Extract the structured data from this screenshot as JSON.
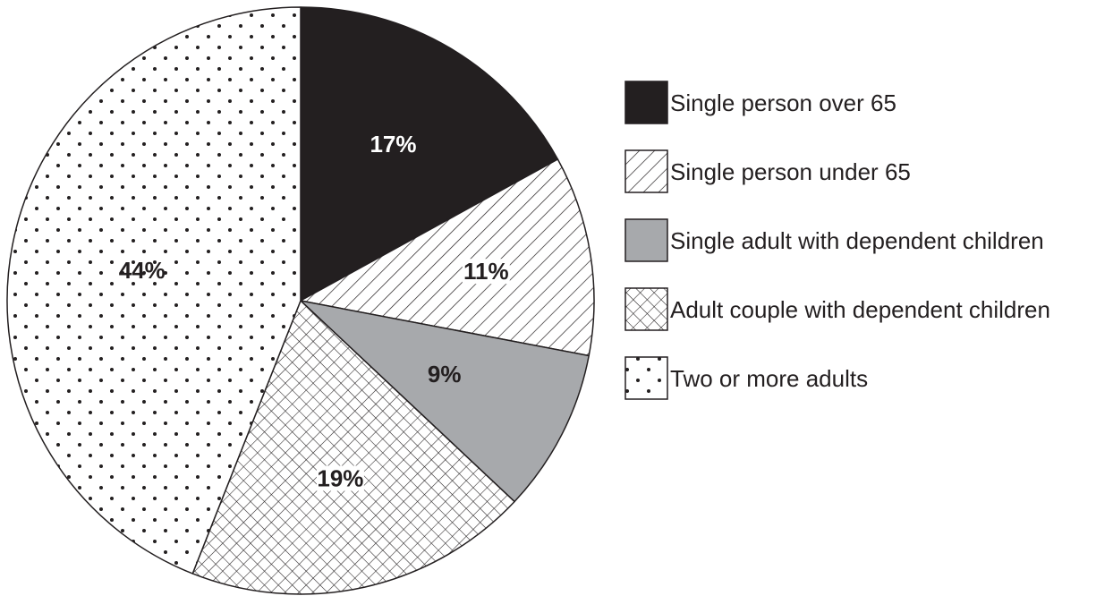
{
  "chart_data": {
    "type": "pie",
    "start_angle_deg": 0,
    "direction": "clockwise",
    "slices": [
      {
        "name": "Single person over 65",
        "value": 17,
        "label": "17%",
        "pattern": "solid-black"
      },
      {
        "name": "Single person under 65",
        "value": 11,
        "label": "11%",
        "pattern": "diagonal-hatch"
      },
      {
        "name": "Single adult with dependent children",
        "value": 9,
        "label": "9%",
        "pattern": "solid-grey"
      },
      {
        "name": "Adult couple with dependent children",
        "value": 19,
        "label": "19%",
        "pattern": "cross-hatch"
      },
      {
        "name": "Two or more adults",
        "value": 44,
        "label": "44%",
        "pattern": "dots"
      }
    ],
    "legend_position": "right",
    "colors": {
      "black": "#231f20",
      "grey": "#a7a9ac",
      "white": "#ffffff"
    }
  }
}
